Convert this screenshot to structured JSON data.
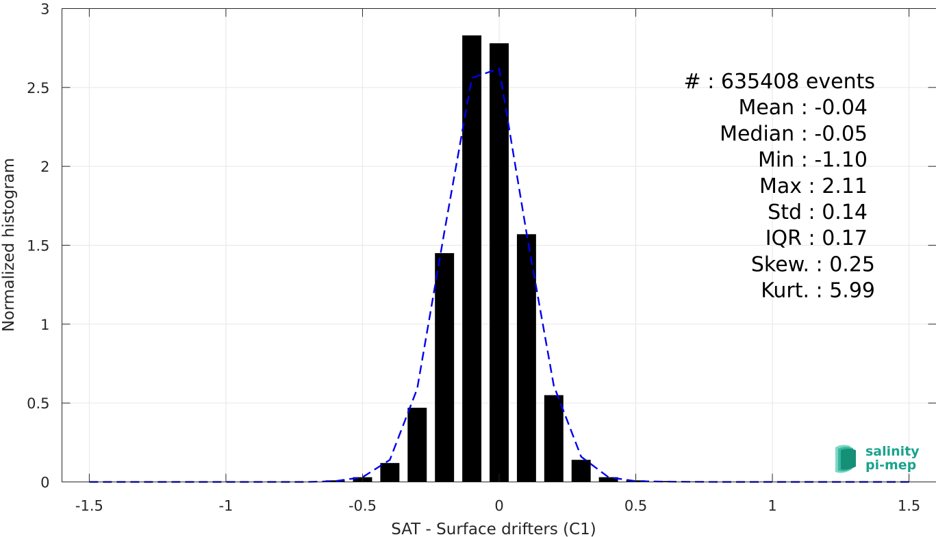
{
  "chart_data": {
    "type": "bar",
    "xlabel": "SAT - Surface drifters (C1)",
    "ylabel": "Normalized histogram",
    "xlim": [
      -1.6,
      1.6
    ],
    "ylim": [
      0,
      3
    ],
    "x_ticks": [
      -1.5,
      -1,
      -0.5,
      0,
      0.5,
      1,
      1.5
    ],
    "x_tick_labels": [
      "-1.5",
      "-1",
      "-0.5",
      "0",
      "0.5",
      "1",
      "1.5"
    ],
    "y_ticks": [
      0,
      0.5,
      1,
      1.5,
      2,
      2.5,
      3
    ],
    "y_tick_labels": [
      "0",
      "0.5",
      "1",
      "1.5",
      "2",
      "2.5",
      "3"
    ],
    "grid": true,
    "bar_width": 0.07,
    "bars": {
      "x": [
        -0.6,
        -0.5,
        -0.4,
        -0.3,
        -0.2,
        -0.1,
        0.0,
        0.1,
        0.2,
        0.3,
        0.4,
        0.5,
        0.6,
        0.7
      ],
      "values": [
        0.01,
        0.03,
        0.12,
        0.47,
        1.45,
        2.83,
        2.78,
        1.57,
        0.55,
        0.14,
        0.03,
        0.01,
        0.006,
        0.003
      ],
      "color": "#000000"
    },
    "fit_curve": {
      "style": "dashed",
      "color": "#0000ee",
      "x": [
        -1.5,
        -1.0,
        -0.8,
        -0.7,
        -0.6,
        -0.5,
        -0.4,
        -0.3,
        -0.2,
        -0.1,
        0.0,
        0.1,
        0.2,
        0.3,
        0.4,
        0.5,
        0.6,
        0.8,
        1.0,
        1.5
      ],
      "y": [
        0,
        0,
        0,
        0,
        0.005,
        0.03,
        0.14,
        0.59,
        1.59,
        2.56,
        2.62,
        1.58,
        0.61,
        0.16,
        0.03,
        0.005,
        0.002,
        0,
        0,
        0
      ]
    },
    "stats": [
      "#  : 635408 events",
      "Mean : -0.04",
      "Median : -0.05",
      "Min : -1.10",
      "Max : 2.11",
      "Std : 0.14",
      "IQR : 0.17",
      "Skew. : 0.25",
      "Kurt. : 5.99"
    ]
  },
  "logo": {
    "line1": "salinity",
    "line2": "pi-mep",
    "color": "#1aa38c"
  }
}
